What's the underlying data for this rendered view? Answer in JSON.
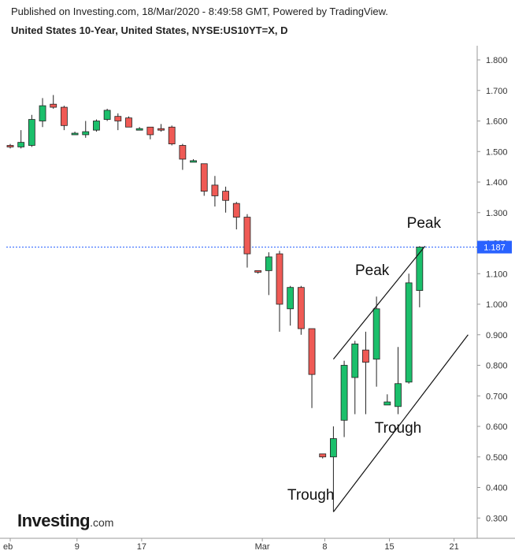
{
  "header": {
    "published": "Published on Investing.com, 18/Mar/2020 - 8:49:58 GMT, Powered by TradingView.",
    "title": "United States 10-Year, United States, NYSE:US10YT=X, D"
  },
  "logo": {
    "brand": "Investing",
    "suffix": ".com"
  },
  "colors": {
    "up": "#1bbf6b",
    "down": "#ef5a55",
    "price_line": "#2962ff",
    "axis": "#999999",
    "text": "#222222"
  },
  "chart_data": {
    "type": "candlestick",
    "ylim": [
      0.25,
      1.85
    ],
    "yticks": [
      "1.800",
      "1.700",
      "1.600",
      "1.500",
      "1.400",
      "1.300",
      "1.200",
      "1.100",
      "1.000",
      "0.900",
      "0.800",
      "0.700",
      "0.600",
      "0.500",
      "0.400",
      "0.300"
    ],
    "xtick_labels": [
      "eb",
      "9",
      "17",
      "Mar",
      "8",
      "15",
      "21"
    ],
    "current_price": "1.187",
    "candles": [
      {
        "o": 1.52,
        "h": 1.525,
        "l": 1.51,
        "c": 1.515
      },
      {
        "o": 1.515,
        "h": 1.57,
        "l": 1.51,
        "c": 1.53
      },
      {
        "o": 1.52,
        "h": 1.62,
        "l": 1.515,
        "c": 1.605
      },
      {
        "o": 1.6,
        "h": 1.675,
        "l": 1.58,
        "c": 1.65
      },
      {
        "o": 1.655,
        "h": 1.685,
        "l": 1.64,
        "c": 1.645
      },
      {
        "o": 1.645,
        "h": 1.65,
        "l": 1.57,
        "c": 1.585
      },
      {
        "o": 1.56,
        "h": 1.565,
        "l": 1.555,
        "c": 1.56
      },
      {
        "o": 1.555,
        "h": 1.6,
        "l": 1.545,
        "c": 1.565
      },
      {
        "o": 1.57,
        "h": 1.605,
        "l": 1.565,
        "c": 1.6
      },
      {
        "o": 1.605,
        "h": 1.64,
        "l": 1.6,
        "c": 1.635
      },
      {
        "o": 1.615,
        "h": 1.625,
        "l": 1.57,
        "c": 1.6
      },
      {
        "o": 1.61,
        "h": 1.615,
        "l": 1.58,
        "c": 1.58
      },
      {
        "o": 1.575,
        "h": 1.58,
        "l": 1.57,
        "c": 1.575
      },
      {
        "o": 1.58,
        "h": 1.58,
        "l": 1.54,
        "c": 1.555
      },
      {
        "o": 1.575,
        "h": 1.59,
        "l": 1.565,
        "c": 1.57
      },
      {
        "o": 1.58,
        "h": 1.585,
        "l": 1.52,
        "c": 1.525
      },
      {
        "o": 1.52,
        "h": 1.525,
        "l": 1.44,
        "c": 1.475
      },
      {
        "o": 1.47,
        "h": 1.475,
        "l": 1.465,
        "c": 1.47
      },
      {
        "o": 1.46,
        "h": 1.46,
        "l": 1.355,
        "c": 1.37
      },
      {
        "o": 1.39,
        "h": 1.42,
        "l": 1.32,
        "c": 1.355
      },
      {
        "o": 1.37,
        "h": 1.385,
        "l": 1.3,
        "c": 1.34
      },
      {
        "o": 1.33,
        "h": 1.335,
        "l": 1.245,
        "c": 1.285
      },
      {
        "o": 1.285,
        "h": 1.295,
        "l": 1.12,
        "c": 1.165
      },
      {
        "o": 1.11,
        "h": 1.11,
        "l": 1.1,
        "c": 1.105
      },
      {
        "o": 1.11,
        "h": 1.17,
        "l": 1.03,
        "c": 1.155
      },
      {
        "o": 1.165,
        "h": 1.175,
        "l": 0.91,
        "c": 1.0
      },
      {
        "o": 0.985,
        "h": 1.06,
        "l": 0.93,
        "c": 1.055
      },
      {
        "o": 1.055,
        "h": 1.06,
        "l": 0.9,
        "c": 0.92
      },
      {
        "o": 0.92,
        "h": 0.92,
        "l": 0.66,
        "c": 0.77
      },
      {
        "o": 0.51,
        "h": 0.51,
        "l": 0.495,
        "c": 0.5
      },
      {
        "o": 0.5,
        "h": 0.6,
        "l": 0.32,
        "c": 0.56
      },
      {
        "o": 0.62,
        "h": 0.815,
        "l": 0.565,
        "c": 0.8
      },
      {
        "o": 0.76,
        "h": 0.88,
        "l": 0.64,
        "c": 0.87
      },
      {
        "o": 0.85,
        "h": 0.91,
        "l": 0.64,
        "c": 0.81
      },
      {
        "o": 0.82,
        "h": 1.025,
        "l": 0.73,
        "c": 0.985
      },
      {
        "o": 0.67,
        "h": 0.705,
        "l": 0.67,
        "c": 0.68
      },
      {
        "o": 0.665,
        "h": 0.86,
        "l": 0.64,
        "c": 0.74
      },
      {
        "o": 0.745,
        "h": 1.1,
        "l": 0.74,
        "c": 1.07
      },
      {
        "o": 1.045,
        "h": 1.19,
        "l": 0.99,
        "c": 1.187
      }
    ],
    "annotations": [
      {
        "text": "Peak",
        "x": 38.4,
        "y": 1.25
      },
      {
        "text": "Peak",
        "x": 33.6,
        "y": 1.095
      },
      {
        "text": "Trough",
        "x": 36.0,
        "y": 0.58
      },
      {
        "text": "Trough",
        "x": 27.9,
        "y": 0.36
      }
    ],
    "channel_lines": [
      {
        "x1": 30.0,
        "y1": 0.82,
        "x2": 38.5,
        "y2": 1.19
      },
      {
        "x1": 30.0,
        "y1": 0.32,
        "x2": 42.5,
        "y2": 0.9
      }
    ]
  }
}
